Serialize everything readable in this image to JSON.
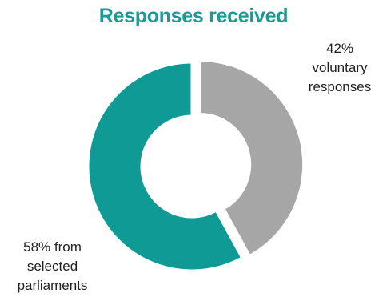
{
  "chart_data": {
    "type": "pie",
    "variant": "donut",
    "title": "Responses received",
    "slices": [
      {
        "label": "42%\nvoluntary\nresponses",
        "value": 42,
        "color": "#a6a6a6",
        "exploded": true
      },
      {
        "label": "58% from\nselected\nparliaments",
        "value": 58,
        "color": "#0f9a96",
        "exploded": false
      }
    ]
  },
  "colors": {
    "title": "#1a9a96",
    "voluntary": "#a6a6a6",
    "selected": "#0f9a96"
  }
}
